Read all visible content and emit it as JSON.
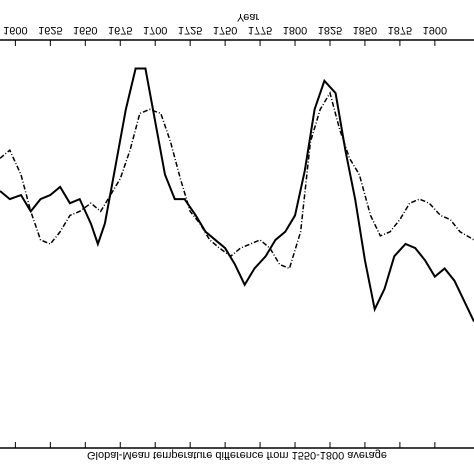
{
  "chart_data": {
    "type": "line",
    "title": "Global-Mean temperature difference from 1550-1800 average",
    "xlabel": "Year",
    "xlim": [
      1589,
      1928
    ],
    "ylim": [
      -0.6,
      0.4
    ],
    "xticks": [
      1600,
      1625,
      1650,
      1675,
      1700,
      1725,
      1750,
      1775,
      1800,
      1825,
      1850,
      1875,
      1900
    ],
    "flipped_vertically": true,
    "series": [
      {
        "color": "#000000",
        "style": "solid",
        "x": [
          1589,
          1596,
          1604,
          1611,
          1618,
          1625,
          1632,
          1639,
          1646,
          1654,
          1659,
          1664,
          1671,
          1679,
          1686,
          1693,
          1700,
          1707,
          1714,
          1721,
          1729,
          1736,
          1743,
          1750,
          1757,
          1764,
          1771,
          1779,
          1786,
          1793,
          1800,
          1807,
          1814,
          1821,
          1829,
          1836,
          1843,
          1850,
          1857,
          1864,
          1871,
          1879,
          1886,
          1893,
          1900,
          1907,
          1914,
          1921,
          1928
        ],
        "values": [
          -0.23,
          -0.21,
          -0.22,
          -0.18,
          -0.21,
          -0.22,
          -0.24,
          -0.2,
          -0.21,
          -0.15,
          -0.1,
          -0.15,
          -0.28,
          -0.43,
          -0.53,
          -0.53,
          -0.4,
          -0.27,
          -0.21,
          -0.21,
          -0.17,
          -0.13,
          -0.11,
          -0.09,
          -0.05,
          0.0,
          -0.04,
          -0.07,
          -0.11,
          -0.13,
          -0.17,
          -0.28,
          -0.43,
          -0.5,
          -0.47,
          -0.33,
          -0.21,
          -0.06,
          0.06,
          0.01,
          -0.07,
          -0.1,
          -0.09,
          -0.06,
          -0.02,
          -0.04,
          -0.01,
          0.04,
          0.09
        ]
      },
      {
        "color": "#000000",
        "style": "dashdot",
        "x": [
          1589,
          1596,
          1604,
          1611,
          1618,
          1625,
          1632,
          1639,
          1646,
          1654,
          1661,
          1668,
          1675,
          1682,
          1689,
          1696,
          1704,
          1711,
          1718,
          1725,
          1732,
          1739,
          1746,
          1754,
          1761,
          1768,
          1775,
          1782,
          1789,
          1796,
          1804,
          1811,
          1818,
          1825,
          1832,
          1839,
          1846,
          1854,
          1861,
          1868,
          1875,
          1882,
          1889,
          1896,
          1904,
          1911,
          1918,
          1928
        ],
        "values": [
          -0.31,
          -0.33,
          -0.27,
          -0.18,
          -0.11,
          -0.1,
          -0.13,
          -0.17,
          -0.18,
          -0.2,
          -0.18,
          -0.22,
          -0.26,
          -0.33,
          -0.42,
          -0.43,
          -0.42,
          -0.35,
          -0.26,
          -0.18,
          -0.15,
          -0.11,
          -0.09,
          -0.07,
          -0.09,
          -0.1,
          -0.11,
          -0.09,
          -0.05,
          -0.04,
          -0.13,
          -0.35,
          -0.43,
          -0.47,
          -0.38,
          -0.31,
          -0.27,
          -0.17,
          -0.12,
          -0.13,
          -0.16,
          -0.2,
          -0.21,
          -0.2,
          -0.17,
          -0.16,
          -0.13,
          -0.11
        ]
      }
    ]
  }
}
